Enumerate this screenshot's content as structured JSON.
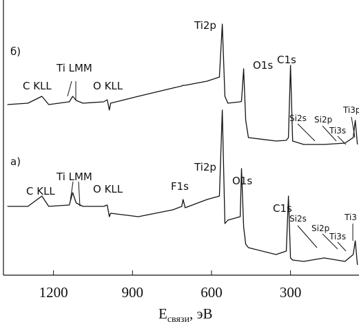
{
  "chart_data": {
    "type": "line",
    "x_label": "E",
    "x_label_sub": "связи",
    "x_label_unit": ", эВ",
    "x": [
      1375,
      1297,
      1244,
      1218,
      1140,
      1127,
      1114,
      1088,
      1009,
      996,
      988,
      983,
      878,
      747,
      713,
      708,
      700,
      617,
      570,
      559,
      549,
      538,
      491,
      486,
      478,
      470,
      460,
      355,
      316,
      308,
      300,
      292,
      250,
      172,
      93,
      62,
      54,
      46
    ],
    "series": [
      {
        "name": "б)",
        "color": "#111111",
        "values": [
          62,
          62.5,
          65,
          62,
          63,
          65,
          63.5,
          62.5,
          63,
          63.75,
          60,
          62.5,
          65,
          68,
          68.75,
          69,
          69,
          70.5,
          72,
          91.25,
          65,
          62.5,
          63,
          63.25,
          75,
          56.25,
          50,
          48.75,
          49,
          50,
          76.25,
          48.75,
          47.5,
          47.5,
          48,
          50,
          56.25,
          47.5
        ]
      },
      {
        "name": "а)",
        "color": "#111111",
        "values": [
          25,
          25,
          28.75,
          25,
          25.5,
          30,
          26.25,
          25,
          25,
          25.5,
          21.25,
          22.5,
          21.25,
          23.75,
          25,
          27.5,
          24.5,
          27.5,
          28.75,
          60,
          18.75,
          20,
          21.25,
          38.75,
          17.5,
          11.25,
          10,
          7.5,
          8.75,
          28.75,
          6.25,
          5.5,
          5,
          6.25,
          5,
          7.5,
          12.5,
          3.75
        ]
      }
    ],
    "annotations": [
      [
        "C KLL",
        "Ti LMM",
        "O KLL",
        "Ti2p",
        "O1s",
        "C1s",
        "Si2s",
        "Si2p",
        "Ti3s",
        "Ti3p"
      ],
      [
        "C KLL",
        "Ti LMM",
        "O KLL",
        "F1s",
        "Ti2p",
        "O1s",
        "C1s",
        "Si2s",
        "Si2p",
        "Ti3s",
        "Ti3"
      ]
    ],
    "xlim": [
      1390,
      40
    ],
    "ylim": [
      0,
      100
    ],
    "xticks": [
      1200,
      900,
      600,
      300
    ]
  }
}
